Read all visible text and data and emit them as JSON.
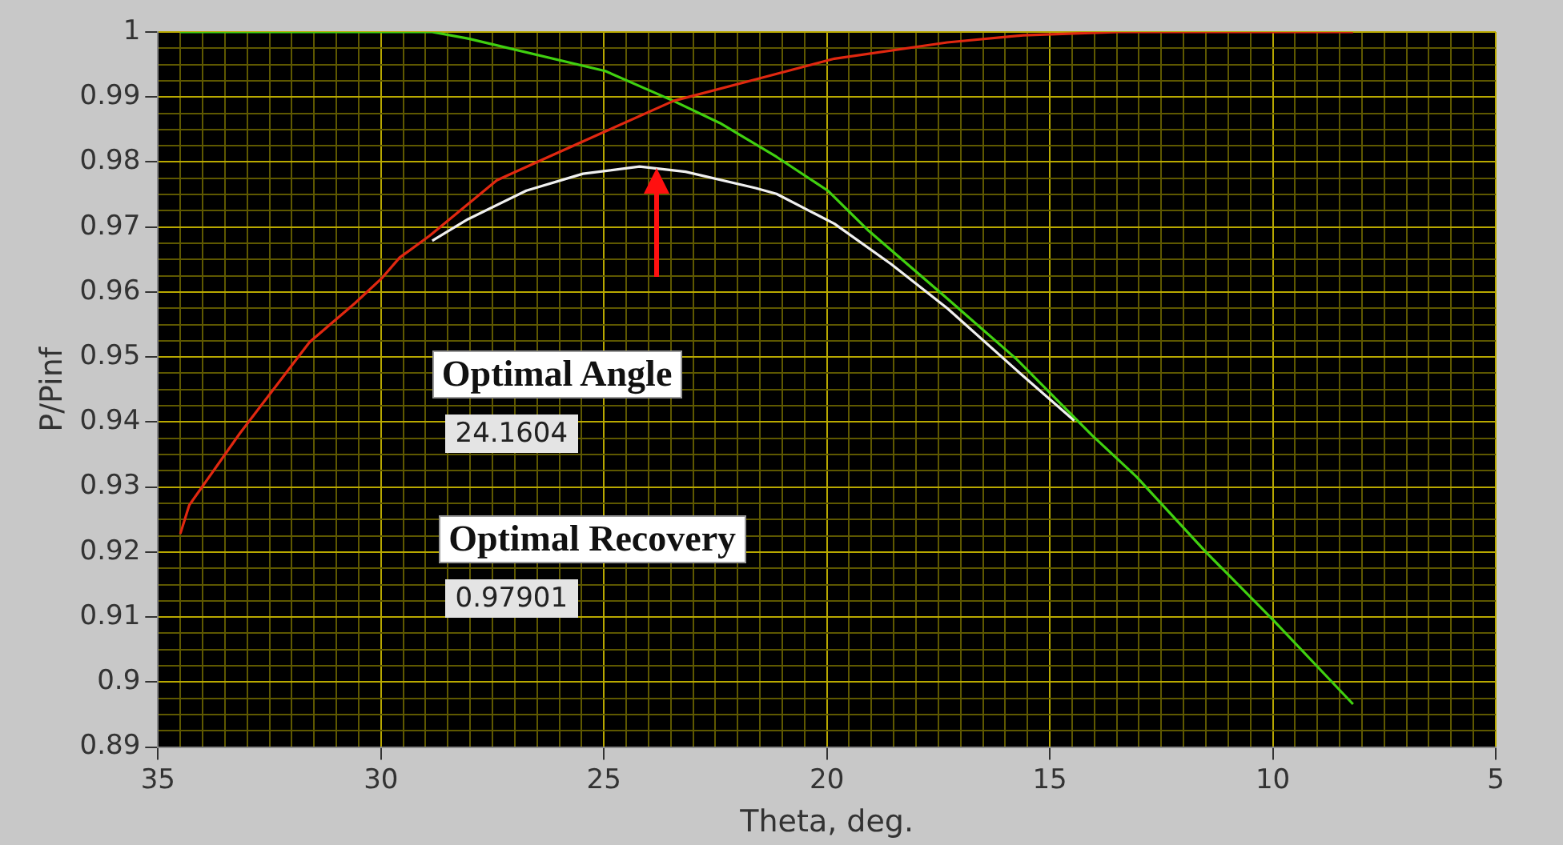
{
  "chart_data": {
    "type": "line",
    "xlabel": "Theta, deg.",
    "ylabel": "P/Pinf",
    "xlim": [
      35,
      5
    ],
    "xticks": [
      35,
      {
        "value": 34.5,
        "label": null
      },
      {
        "value": 34,
        "label": null
      },
      {
        "value": 33.5,
        "label": null
      },
      {
        "value": 33,
        "label": null
      },
      {
        "value": 32.5,
        "label": null
      },
      {
        "value": 32,
        "label": null
      },
      {
        "value": 31.5,
        "label": null
      },
      {
        "value": 31,
        "label": null
      },
      {
        "value": 30.5,
        "label": null
      },
      30,
      {
        "value": 29.5,
        "label": null
      },
      {
        "value": 29,
        "label": null
      },
      {
        "value": 28.5,
        "label": null
      },
      {
        "value": 28,
        "label": null
      },
      {
        "value": 27.5,
        "label": null
      },
      {
        "value": 27,
        "label": null
      },
      {
        "value": 26.5,
        "label": null
      },
      {
        "value": 26,
        "label": null
      },
      {
        "value": 25.5,
        "label": null
      },
      25,
      {
        "value": 24.5,
        "label": null
      },
      {
        "value": 24,
        "label": null
      },
      {
        "value": 23.5,
        "label": null
      },
      {
        "value": 23,
        "label": null
      },
      {
        "value": 22.5,
        "label": null
      },
      {
        "value": 22,
        "label": null
      },
      {
        "value": 21.5,
        "label": null
      },
      {
        "value": 21,
        "label": null
      },
      {
        "value": 20.5,
        "label": null
      },
      20,
      {
        "value": 19.5,
        "label": null
      },
      {
        "value": 19,
        "label": null
      },
      {
        "value": 18.5,
        "label": null
      },
      {
        "value": 18,
        "label": null
      },
      {
        "value": 17.5,
        "label": null
      },
      {
        "value": 17,
        "label": null
      },
      {
        "value": 16.5,
        "label": null
      },
      {
        "value": 16,
        "label": null
      },
      {
        "value": 15.5,
        "label": null
      },
      15,
      {
        "value": 14.5,
        "label": null
      },
      {
        "value": 14,
        "label": null
      },
      {
        "value": 13.5,
        "label": null
      },
      {
        "value": 13,
        "label": null
      },
      {
        "value": 12.5,
        "label": null
      },
      {
        "value": 12,
        "label": null
      },
      {
        "value": 11.5,
        "label": null
      },
      {
        "value": 11,
        "label": null
      },
      {
        "value": 10.5,
        "label": null
      },
      10,
      {
        "value": 9.5,
        "label": null
      },
      {
        "value": 9,
        "label": null
      },
      {
        "value": 8.5,
        "label": null
      },
      {
        "value": 8,
        "label": null
      },
      {
        "value": 7.5,
        "label": null
      },
      {
        "value": 7,
        "label": null
      },
      {
        "value": 6.5,
        "label": null
      },
      {
        "value": 6,
        "label": null
      },
      {
        "value": 5.5,
        "label": null
      },
      5
    ],
    "ylim": [
      0.89,
      1
    ],
    "yticks": [
      0.89,
      {
        "value": 0.8925,
        "label": null
      },
      {
        "value": 0.895,
        "label": null
      },
      {
        "value": 0.8975,
        "label": null
      },
      0.9,
      {
        "value": 0.9025,
        "label": null
      },
      {
        "value": 0.905,
        "label": null
      },
      {
        "value": 0.9075,
        "label": null
      },
      0.91,
      {
        "value": 0.9125,
        "label": null
      },
      {
        "value": 0.915,
        "label": null
      },
      {
        "value": 0.9175,
        "label": null
      },
      0.92,
      {
        "value": 0.9225,
        "label": null
      },
      {
        "value": 0.925,
        "label": null
      },
      {
        "value": 0.9275,
        "label": null
      },
      0.93,
      {
        "value": 0.9325,
        "label": null
      },
      {
        "value": 0.935,
        "label": null
      },
      {
        "value": 0.9375,
        "label": null
      },
      0.94,
      {
        "value": 0.9425,
        "label": null
      },
      {
        "value": 0.945,
        "label": null
      },
      {
        "value": 0.9475,
        "label": null
      },
      0.95,
      {
        "value": 0.9525,
        "label": null
      },
      {
        "value": 0.955,
        "label": null
      },
      {
        "value": 0.9575,
        "label": null
      },
      0.96,
      {
        "value": 0.9625,
        "label": null
      },
      {
        "value": 0.965,
        "label": null
      },
      {
        "value": 0.9675,
        "label": null
      },
      0.97,
      {
        "value": 0.9725,
        "label": null
      },
      {
        "value": 0.975,
        "label": null
      },
      {
        "value": 0.9775,
        "label": null
      },
      0.98,
      {
        "value": 0.9825,
        "label": null
      },
      {
        "value": 0.985,
        "label": null
      },
      {
        "value": 0.9875,
        "label": null
      },
      0.99,
      {
        "value": 0.9925,
        "label": null
      },
      {
        "value": 0.995,
        "label": null
      },
      {
        "value": 0.9975,
        "label": null
      },
      1
    ],
    "grid": true,
    "legend": false,
    "marker": "none",
    "line_style": "solid",
    "series": [
      {
        "color": "#e02810",
        "x": [
          34.5,
          34.3,
          33.16,
          31.6,
          30.58,
          29.97,
          29.58,
          28.9,
          27.4,
          26.24,
          24.97,
          23.44,
          21.6,
          19.83,
          17.3,
          15.6,
          13.45,
          8.2
        ],
        "values": [
          0.9228,
          0.9272,
          0.9383,
          0.9523,
          0.9583,
          0.9622,
          0.9653,
          0.9687,
          0.9772,
          0.9808,
          0.9847,
          0.9894,
          0.9927,
          0.9959,
          0.9984,
          0.9995,
          1.0,
          1.0
        ]
      },
      {
        "color": "#40d010",
        "x": [
          34.5,
          28.85,
          28.05,
          24.97,
          23.44,
          22.4,
          21.13,
          19.98,
          19.06,
          17.4,
          15.75,
          14.06,
          13.06,
          11.5,
          10.0,
          8.2
        ],
        "values": [
          1.0,
          1.0,
          0.999,
          0.994,
          0.9894,
          0.986,
          0.9808,
          0.9756,
          0.9694,
          0.9596,
          0.9497,
          0.938,
          0.9316,
          0.92,
          0.9096,
          0.8966
        ]
      },
      {
        "color": "#f0f0f0",
        "x": [
          28.85,
          28.05,
          26.74,
          25.47,
          24.2,
          23.17,
          21.6,
          21.13,
          19.83,
          18.56,
          17.3,
          15.75,
          14.45
        ],
        "values": [
          0.9679,
          0.9712,
          0.9756,
          0.9782,
          0.9793,
          0.9785,
          0.976,
          0.9751,
          0.9705,
          0.9643,
          0.9575,
          0.948,
          0.9402
        ]
      }
    ],
    "annotations": [
      "Optimal Angle",
      "24.1604",
      "Optimal Recovery",
      "0.97901"
    ]
  }
}
